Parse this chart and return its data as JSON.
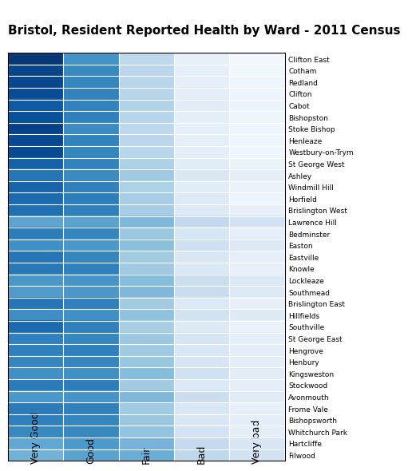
{
  "title": "Bristol, Resident Reported Health by Ward - 2011 Census",
  "wards": [
    "Clifton East",
    "Cotham",
    "Redland",
    "Clifton",
    "Cabot",
    "Bishopston",
    "Stoke Bishop",
    "Henleaze",
    "Westbury-on-Trym",
    "St George West",
    "Ashley",
    "Windmill Hill",
    "Horfield",
    "Brislington West",
    "Lawrence Hill",
    "Bedminster",
    "Easton",
    "Eastville",
    "Knowle",
    "Lockleaze",
    "Southmead",
    "Brislington East",
    "Hillfields",
    "Southville",
    "St George East",
    "Hengrove",
    "Henbury",
    "Kingsweston",
    "Stockwood",
    "Avonmouth",
    "Frome Vale",
    "Bishopsworth",
    "Whitchurch Park",
    "Hartcliffe",
    "Filwood"
  ],
  "categories": [
    "Very Good",
    "Good",
    "Fair",
    "Bad",
    "Very bad"
  ],
  "data": [
    [
      48.5,
      31.0,
      13.5,
      4.2,
      1.5
    ],
    [
      46.0,
      33.0,
      14.2,
      4.5,
      1.8
    ],
    [
      45.5,
      33.5,
      14.5,
      4.5,
      2.0
    ],
    [
      44.5,
      34.0,
      14.5,
      4.8,
      2.2
    ],
    [
      42.0,
      34.0,
      15.5,
      5.5,
      3.0
    ],
    [
      43.5,
      34.5,
      14.8,
      5.0,
      2.2
    ],
    [
      46.5,
      32.5,
      13.8,
      4.5,
      2.2
    ],
    [
      45.0,
      34.0,
      14.2,
      4.5,
      2.3
    ],
    [
      45.0,
      33.5,
      14.5,
      4.8,
      2.2
    ],
    [
      40.5,
      34.0,
      16.5,
      5.8,
      3.2
    ],
    [
      36.5,
      32.5,
      18.5,
      7.5,
      5.0
    ],
    [
      40.0,
      34.5,
      16.5,
      5.8,
      3.2
    ],
    [
      38.5,
      35.0,
      17.5,
      6.5,
      2.5
    ],
    [
      37.5,
      34.5,
      17.5,
      6.5,
      4.0
    ],
    [
      27.0,
      27.5,
      22.5,
      13.0,
      10.0
    ],
    [
      35.0,
      33.5,
      19.0,
      8.0,
      4.5
    ],
    [
      31.5,
      30.0,
      21.0,
      10.5,
      7.0
    ],
    [
      36.5,
      33.5,
      18.0,
      7.5,
      4.5
    ],
    [
      36.0,
      34.5,
      18.5,
      7.0,
      4.0
    ],
    [
      30.0,
      30.5,
      21.5,
      11.0,
      7.0
    ],
    [
      29.0,
      30.0,
      22.5,
      11.5,
      7.0
    ],
    [
      36.5,
      34.5,
      18.0,
      7.0,
      4.0
    ],
    [
      32.0,
      31.5,
      20.5,
      9.5,
      6.5
    ],
    [
      38.5,
      34.5,
      17.0,
      6.5,
      3.5
    ],
    [
      34.5,
      33.5,
      19.0,
      8.5,
      4.5
    ],
    [
      34.5,
      34.5,
      18.5,
      7.5,
      5.0
    ],
    [
      33.5,
      33.5,
      19.5,
      8.5,
      5.0
    ],
    [
      31.5,
      31.5,
      21.5,
      10.0,
      5.5
    ],
    [
      35.5,
      35.0,
      18.0,
      7.0,
      4.5
    ],
    [
      30.0,
      30.5,
      22.5,
      11.0,
      6.0
    ],
    [
      35.5,
      34.5,
      18.5,
      7.5,
      4.0
    ],
    [
      34.5,
      33.5,
      19.5,
      7.5,
      5.0
    ],
    [
      33.0,
      33.0,
      20.0,
      9.0,
      5.0
    ],
    [
      26.5,
      29.5,
      23.5,
      12.5,
      8.0
    ],
    [
      24.0,
      27.5,
      25.0,
      13.5,
      9.5
    ]
  ],
  "cmap": "Blues",
  "vmin": 0,
  "vmax": 50,
  "tick_fontsize": 6.5,
  "title_fontsize": 11,
  "label_fontsize": 9,
  "background_color": "#ffffff"
}
